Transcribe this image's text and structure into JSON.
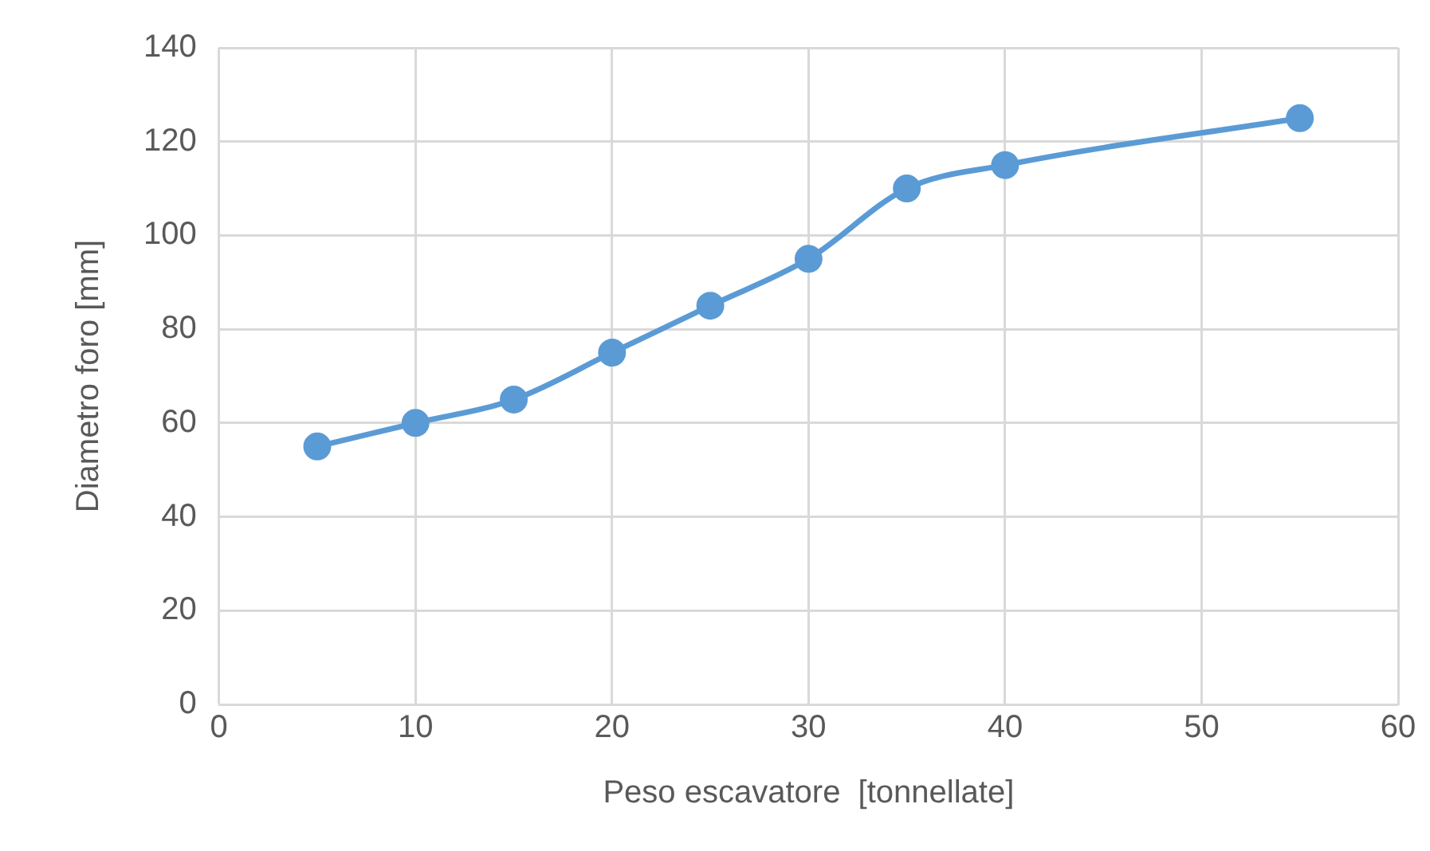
{
  "chart_data": {
    "type": "line",
    "xlabel": "Peso escavatore  [tonnellate]",
    "ylabel": "Diametro foro [mm]",
    "x": [
      5,
      10,
      15,
      20,
      25,
      30,
      35,
      40,
      55
    ],
    "series": [
      {
        "color": "#5b9bd5",
        "values": [
          55,
          60,
          65,
          75,
          85,
          95,
          110,
          115,
          125
        ]
      }
    ],
    "xlim": [
      0,
      60
    ],
    "xticks": [
      0,
      10,
      20,
      30,
      40,
      50,
      60
    ],
    "ylim": [
      0,
      140
    ],
    "yticks": [
      0,
      20,
      40,
      60,
      80,
      100,
      120,
      140
    ],
    "grid": true,
    "marker": "circle",
    "line_style": "solid",
    "legend": false
  }
}
